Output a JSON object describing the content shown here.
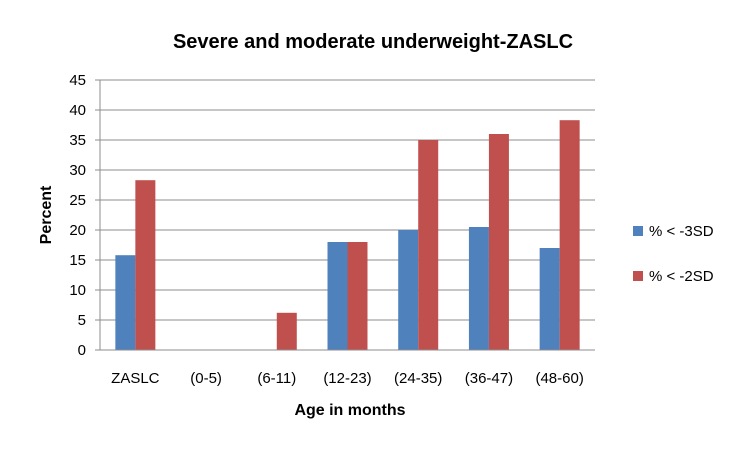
{
  "chart_data": {
    "type": "bar",
    "title": "Severe and moderate underweight-ZASLC",
    "xlabel": "Age in months",
    "ylabel": "Percent",
    "categories": [
      "ZASLC",
      "(0-5)",
      "(6-11)",
      "(12-23)",
      "(24-35)",
      "(36-47)",
      "(48-60)"
    ],
    "series": [
      {
        "name": "% < -3SD",
        "color": "#4F81BD",
        "values": [
          15.8,
          0,
          0,
          18.0,
          20.0,
          20.5,
          17.0
        ]
      },
      {
        "name": "% < -2SD",
        "color": "#C0504D",
        "values": [
          28.3,
          0,
          6.2,
          18.0,
          35.0,
          36.0,
          38.3
        ]
      }
    ],
    "ylim": [
      0,
      45
    ],
    "yticks": [
      0,
      5,
      10,
      15,
      20,
      25,
      30,
      35,
      40,
      45
    ],
    "grid": true,
    "legend": "right"
  }
}
